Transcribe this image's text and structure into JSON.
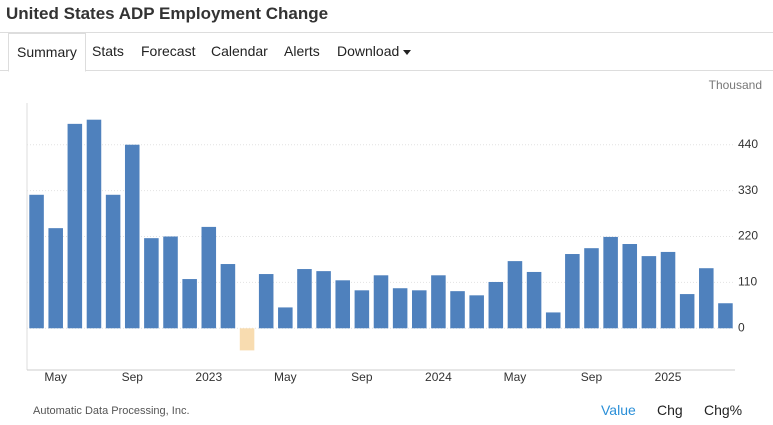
{
  "header": {
    "title": "United States ADP Employment Change"
  },
  "tabs": [
    "Summary",
    "Stats",
    "Forecast",
    "Calendar",
    "Alerts",
    "Download"
  ],
  "footer": {
    "source": "Automatic Data Processing, Inc.",
    "options": [
      "Value",
      "Chg",
      "Chg%"
    ]
  },
  "chart_data": {
    "type": "bar",
    "unit_label": "Thousand",
    "categories": [
      null,
      "May",
      null,
      null,
      null,
      "Sep",
      null,
      null,
      null,
      "2023",
      null,
      null,
      null,
      "May",
      null,
      null,
      null,
      "Sep",
      null,
      null,
      null,
      "2024",
      null,
      null,
      null,
      "May",
      null,
      null,
      null,
      "Sep",
      null,
      null,
      null,
      "2025",
      null,
      null,
      null
    ],
    "values": [
      320,
      240,
      490,
      500,
      320,
      440,
      216,
      220,
      118,
      243,
      154,
      -53,
      130,
      50,
      142,
      137,
      115,
      91,
      127,
      96,
      91,
      127,
      89,
      79,
      111,
      161,
      135,
      38,
      178,
      192,
      219,
      202,
      173,
      183,
      82,
      144,
      60
    ],
    "color": "#4f81bd",
    "negative_color": "#f8dcb0",
    "ylim": [
      -100,
      540
    ],
    "yticks": [
      0,
      110,
      220,
      330,
      440
    ],
    "grid": true
  }
}
